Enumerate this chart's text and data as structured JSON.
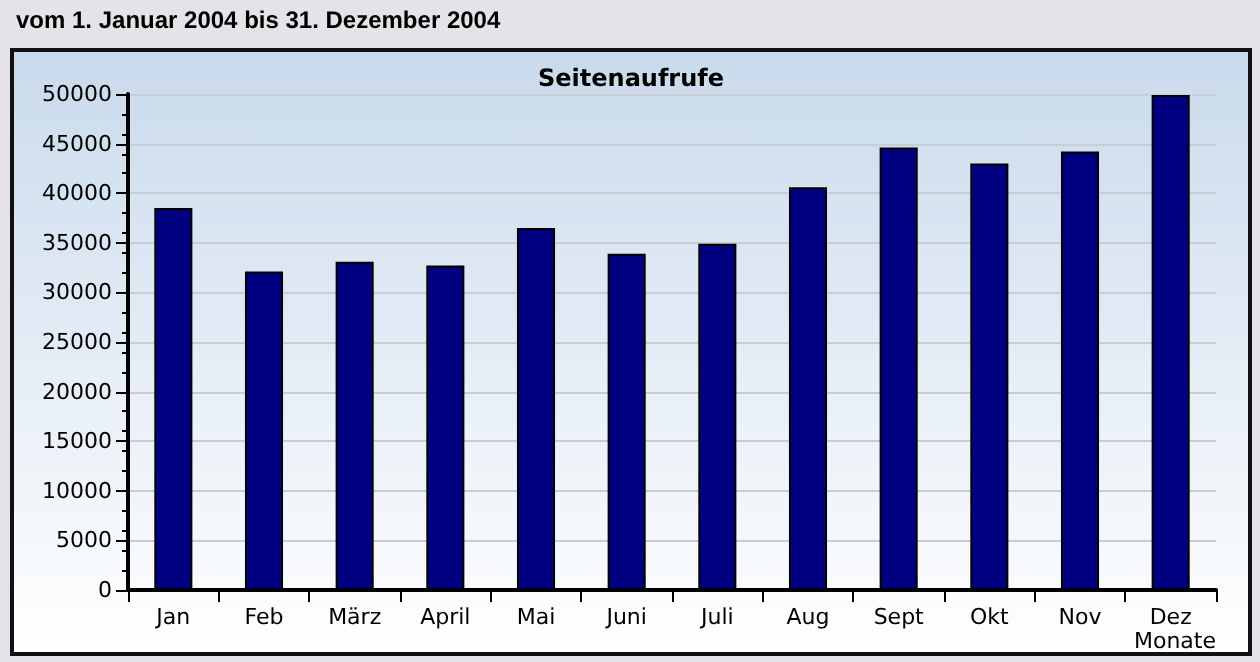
{
  "chart_data": {
    "type": "bar",
    "title": "Seitenaufrufe",
    "subtitle": "vom 1. Januar 2004  bis 31. Dezember 2004",
    "xlabel": "Monate",
    "categories": [
      "Jan",
      "Feb",
      "März",
      "April",
      "Mai",
      "Juni",
      "Juli",
      "Aug",
      "Sept",
      "Okt",
      "Nov",
      "Dez"
    ],
    "values": [
      38500,
      32100,
      33100,
      32700,
      36500,
      33900,
      34900,
      40600,
      44600,
      43000,
      44200,
      49900
    ],
    "color": "#000080",
    "ylim": [
      0,
      50000
    ],
    "yticks": [
      0,
      5000,
      10000,
      15000,
      20000,
      25000,
      30000,
      35000,
      40000,
      45000,
      50000
    ],
    "grid": "y"
  }
}
